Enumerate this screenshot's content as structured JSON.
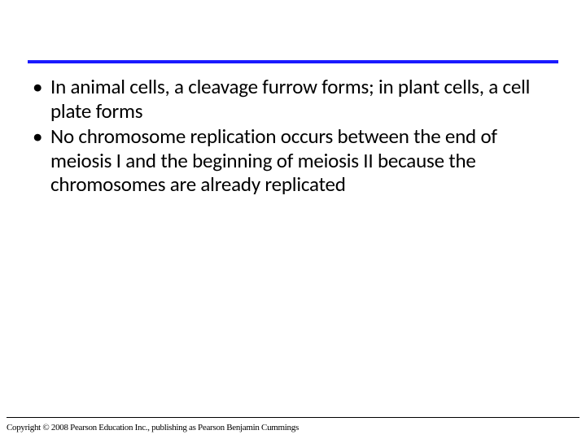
{
  "layout": {
    "slide_width": 720,
    "slide_height": 540,
    "background_color": "#ffffff",
    "top_rule_color": "#1a1aff",
    "top_rule_thickness": 4,
    "bottom_rule_color": "#000000",
    "bottom_rule_thickness": 1,
    "body_font_family": "Calibri",
    "body_font_size": 25,
    "body_text_color": "#000000",
    "copyright_font_family": "Times New Roman",
    "copyright_font_size": 11
  },
  "bullets": [
    "In animal cells, a cleavage furrow forms; in plant cells, a cell plate forms",
    "No chromosome replication occurs between the end of meiosis I and the beginning of meiosis II because the chromosomes are already replicated"
  ],
  "copyright": "Copyright © 2008 Pearson Education Inc., publishing as Pearson Benjamin Cummings"
}
